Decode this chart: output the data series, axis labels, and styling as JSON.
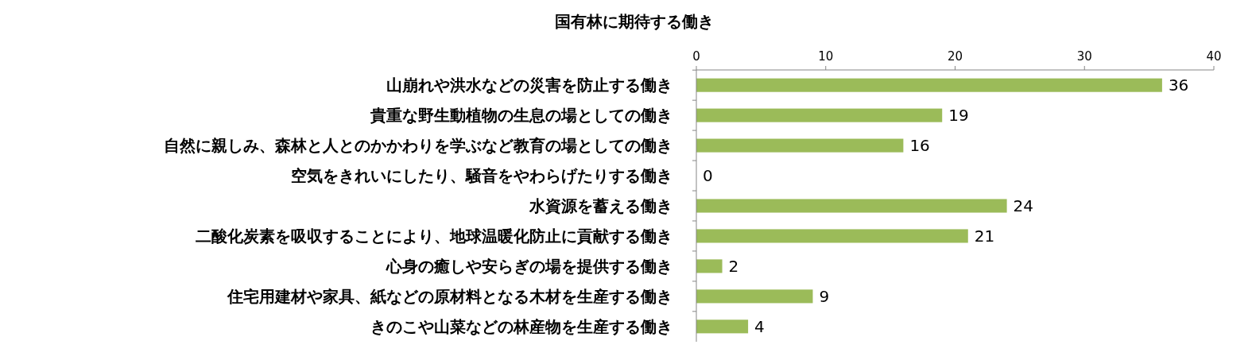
{
  "chart_data": {
    "type": "bar",
    "orientation": "horizontal",
    "title": "国有林に期待する働き",
    "categories": [
      "山崩れや洪水などの災害を防止する働き",
      "貴重な野生動植物の生息の場としての働き",
      "自然に親しみ、森林と人とのかかわりを学ぶなど教育の場としての働き",
      "空気をきれいにしたり、騒音をやわらげたりする働き",
      "水資源を蓄える働き",
      "二酸化炭素を吸収することにより、地球温暖化防止に貢献する働き",
      "心身の癒しや安らぎの場を提供する働き",
      "住宅用建材や家具、紙などの原材料となる木材を生産する働き",
      "きのこや山菜などの林産物を生産する働き"
    ],
    "values": [
      36,
      19,
      16,
      0,
      24,
      21,
      2,
      9,
      4
    ],
    "color": "#9bbb59",
    "xlim": [
      0,
      40
    ],
    "xticks": [
      0,
      10,
      20,
      30,
      40
    ],
    "data_labels": true
  }
}
